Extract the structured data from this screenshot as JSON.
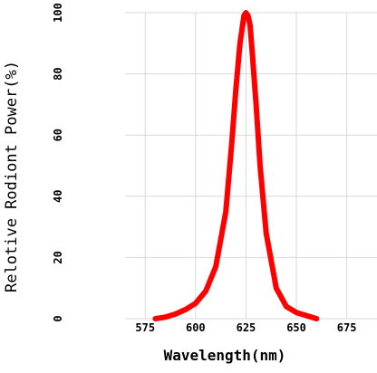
{
  "chart_data": {
    "type": "line",
    "title": "",
    "xlabel": "Wavelength(nm)",
    "ylabel": "Relotive Rodiont Power(%)",
    "xlim": [
      565,
      690
    ],
    "ylim": [
      0,
      100
    ],
    "x_ticks": [
      575,
      600,
      625,
      650,
      675
    ],
    "y_ticks": [
      0,
      20,
      40,
      60,
      80,
      100
    ],
    "x_tick_labels": [
      "575",
      "600",
      "625",
      "650",
      "675"
    ],
    "y_tick_labels": [
      "0",
      "20",
      "40",
      "60",
      "80",
      "100"
    ],
    "grid": true,
    "legend": false,
    "series": [
      {
        "color": "#ff0000",
        "x": [
          580,
          585,
          590,
          595,
          600,
          605,
          610,
          615,
          618,
          620,
          622,
          624,
          625,
          626,
          627,
          628,
          630,
          632,
          635,
          640,
          645,
          650,
          655,
          660
        ],
        "y": [
          0,
          0.5,
          1.5,
          3,
          5,
          9,
          17,
          35,
          58,
          75,
          90,
          99,
          100,
          99,
          96,
          88,
          70,
          50,
          28,
          10,
          4,
          2,
          1,
          0
        ]
      }
    ]
  }
}
